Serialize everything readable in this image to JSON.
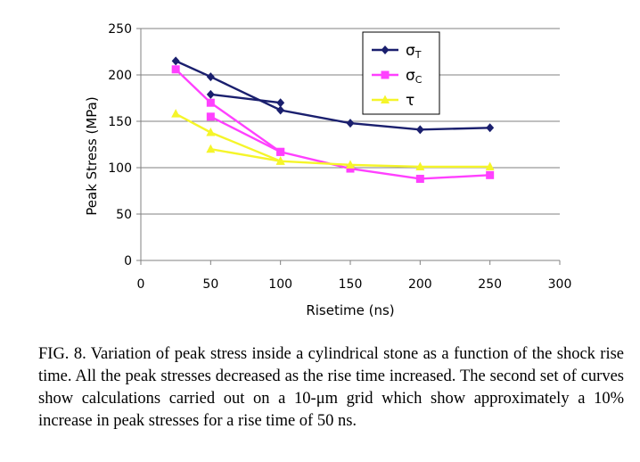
{
  "chart_data": {
    "type": "line",
    "xlabel": "Risetime (ns)",
    "ylabel": "Peak Stress (MPa)",
    "xlim": [
      0,
      300
    ],
    "ylim": [
      0,
      250
    ],
    "x_ticks": [
      "0",
      "50",
      "100",
      "150",
      "200",
      "250",
      "300"
    ],
    "y_ticks": [
      "0",
      "50",
      "100",
      "150",
      "200",
      "250"
    ],
    "grid": "horizontal",
    "legend_position": "top-right",
    "series": [
      {
        "name": "σT",
        "label_main": "σ",
        "label_sub": "T",
        "color": "#1a1f6e",
        "marker": "diamond",
        "x": [
          25,
          50,
          100,
          150,
          200,
          250
        ],
        "values": [
          215,
          198,
          162,
          148,
          141,
          143
        ]
      },
      {
        "name": "σC",
        "label_main": "σ",
        "label_sub": "C",
        "color": "#ff40ff",
        "marker": "square",
        "x": [
          25,
          50,
          100,
          150,
          200,
          250
        ],
        "values": [
          206,
          170,
          117,
          99,
          88,
          92
        ]
      },
      {
        "name": "τ",
        "label_main": "τ",
        "label_sub": "",
        "color": "#f5f52a",
        "marker": "triangle",
        "x": [
          25,
          50,
          100,
          150,
          200,
          250
        ],
        "values": [
          158,
          138,
          107,
          103,
          101,
          101
        ]
      },
      {
        "name": "",
        "label_main": "",
        "label_sub": "",
        "color": "#1a1f6e",
        "marker": "diamond",
        "x": [
          50,
          100
        ],
        "values": [
          179,
          170
        ]
      },
      {
        "name": "",
        "label_main": "",
        "label_sub": "",
        "color": "#ff40ff",
        "marker": "square",
        "x": [
          50,
          100
        ],
        "values": [
          155,
          117
        ]
      },
      {
        "name": "",
        "label_main": "",
        "label_sub": "",
        "color": "#f5f52a",
        "marker": "triangle",
        "x": [
          50,
          100
        ],
        "values": [
          120,
          107
        ]
      }
    ]
  },
  "caption": "FIG. 8. Variation of peak stress inside a cylindrical stone as a function of the shock rise time. All the peak stresses decreased as the rise time increased. The second set of curves show calculations carried out on a 10-μm grid which show approximately a 10% increase in peak stresses for a rise time of 50 ns."
}
